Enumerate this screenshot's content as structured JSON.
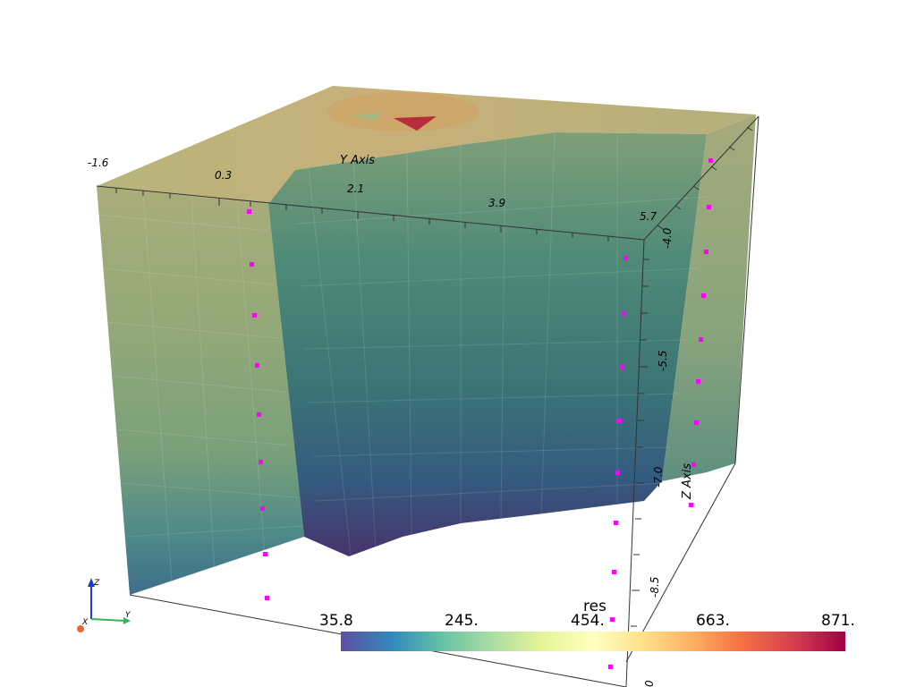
{
  "scene": {
    "axes": {
      "y_title": "Y Axis",
      "z_title": "Z Axis",
      "y_ticks": [
        "-1.6",
        "0.3",
        "2.1",
        "3.9",
        "5.7"
      ],
      "z_ticks": [
        "-4.0",
        "-5.5",
        "-7.0",
        "-8.5",
        "0"
      ]
    },
    "orientation_widget": {
      "x": "X",
      "y": "Y",
      "z": "Z"
    },
    "markers_color": "#ff00ff"
  },
  "colorbar": {
    "title": "res",
    "labels": [
      "35.8",
      "245.",
      "454.",
      "663.",
      "871."
    ],
    "colormap": [
      "#5e4fa2",
      "#3288bd",
      "#66c2a5",
      "#abdda4",
      "#e6f598",
      "#ffffbf",
      "#fee08b",
      "#fdae61",
      "#f46d43",
      "#d53e4f",
      "#9e0142"
    ]
  }
}
